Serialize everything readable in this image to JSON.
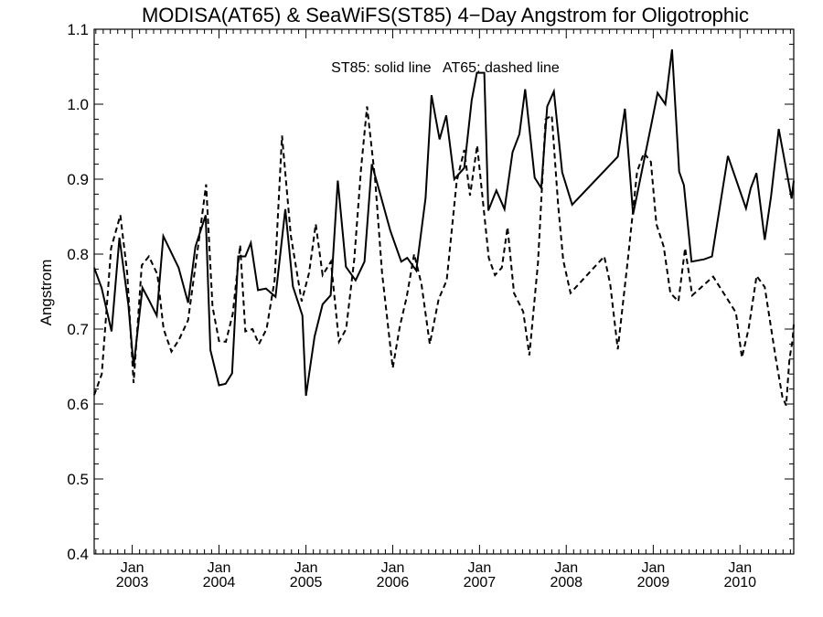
{
  "chart_data": {
    "type": "line",
    "title": "MODISA(AT65) & SeaWiFS(ST85) 4−Day Angstrom for Oligotrophic",
    "ylabel": "Angstrom",
    "xlabel": "",
    "ylim": [
      0.4,
      1.1
    ],
    "xlim": [
      "2002-07-25",
      "2010-08-15"
    ],
    "yticks": [
      "0.4",
      "0.5",
      "0.6",
      "0.7",
      "0.8",
      "0.9",
      "1.0",
      "1.1"
    ],
    "xticks": [
      {
        "date": "2003-01-01",
        "month": "Jan",
        "year": "2003"
      },
      {
        "date": "2004-01-01",
        "month": "Jan",
        "year": "2004"
      },
      {
        "date": "2005-01-01",
        "month": "Jan",
        "year": "2005"
      },
      {
        "date": "2006-01-01",
        "month": "Jan",
        "year": "2006"
      },
      {
        "date": "2007-01-01",
        "month": "Jan",
        "year": "2007"
      },
      {
        "date": "2008-01-01",
        "month": "Jan",
        "year": "2008"
      },
      {
        "date": "2009-01-01",
        "month": "Jan",
        "year": "2009"
      },
      {
        "date": "2010-01-01",
        "month": "Jan",
        "year": "2010"
      }
    ],
    "annotation": "ST85: solid line   AT65: dashed line",
    "grid": false,
    "series": [
      {
        "name": "ST85",
        "style": "solid",
        "color": "#000000",
        "points": [
          [
            "2002-07-25",
            0.782
          ],
          [
            "2002-08-25",
            0.755
          ],
          [
            "2002-10-06",
            0.697
          ],
          [
            "2002-11-08",
            0.822
          ],
          [
            "2002-12-16",
            0.732
          ],
          [
            "2003-01-07",
            0.65
          ],
          [
            "2003-02-13",
            0.755
          ],
          [
            "2003-03-15",
            0.737
          ],
          [
            "2003-04-14",
            0.718
          ],
          [
            "2003-05-12",
            0.824
          ],
          [
            "2003-07-15",
            0.782
          ],
          [
            "2003-08-24",
            0.735
          ],
          [
            "2003-09-24",
            0.81
          ],
          [
            "2003-11-06",
            0.852
          ],
          [
            "2003-11-26",
            0.672
          ],
          [
            "2004-01-01",
            0.625
          ],
          [
            "2004-01-29",
            0.627
          ],
          [
            "2004-02-25",
            0.641
          ],
          [
            "2004-03-22",
            0.797
          ],
          [
            "2004-04-21",
            0.797
          ],
          [
            "2004-05-14",
            0.815
          ],
          [
            "2004-06-13",
            0.752
          ],
          [
            "2004-07-17",
            0.754
          ],
          [
            "2004-08-26",
            0.743
          ],
          [
            "2004-10-06",
            0.86
          ],
          [
            "2004-11-07",
            0.757
          ],
          [
            "2004-12-17",
            0.718
          ],
          [
            "2005-01-01",
            0.611
          ],
          [
            "2005-02-06",
            0.69
          ],
          [
            "2005-03-12",
            0.733
          ],
          [
            "2005-04-15",
            0.745
          ],
          [
            "2005-05-15",
            0.898
          ],
          [
            "2005-06-18",
            0.783
          ],
          [
            "2005-07-29",
            0.765
          ],
          [
            "2005-09-04",
            0.79
          ],
          [
            "2005-10-05",
            0.92
          ],
          [
            "2005-11-08",
            0.882
          ],
          [
            "2005-12-22",
            0.831
          ],
          [
            "2006-02-06",
            0.79
          ],
          [
            "2006-03-03",
            0.795
          ],
          [
            "2006-04-10",
            0.778
          ],
          [
            "2006-05-19",
            0.875
          ],
          [
            "2006-06-13",
            1.012
          ],
          [
            "2006-07-17",
            0.953
          ],
          [
            "2006-08-14",
            0.985
          ],
          [
            "2006-09-17",
            0.9
          ],
          [
            "2006-10-29",
            0.915
          ],
          [
            "2006-11-29",
            1.005
          ],
          [
            "2006-12-21",
            1.042
          ],
          [
            "2007-01-21",
            1.042
          ],
          [
            "2007-02-07",
            0.858
          ],
          [
            "2007-03-13",
            0.885
          ],
          [
            "2007-04-16",
            0.86
          ],
          [
            "2007-05-20",
            0.936
          ],
          [
            "2007-06-18",
            0.96
          ],
          [
            "2007-07-12",
            1.02
          ],
          [
            "2007-08-21",
            0.902
          ],
          [
            "2007-09-18",
            0.888
          ],
          [
            "2007-10-13",
            0.997
          ],
          [
            "2007-11-10",
            1.017
          ],
          [
            "2007-12-15",
            0.909
          ],
          [
            "2008-01-26",
            0.866
          ],
          [
            "2008-08-05",
            0.93
          ],
          [
            "2008-09-04",
            0.994
          ],
          [
            "2008-10-08",
            0.853
          ],
          [
            "2008-12-25",
            0.975
          ],
          [
            "2009-01-19",
            1.015
          ],
          [
            "2009-02-21",
            1.0
          ],
          [
            "2009-03-21",
            1.073
          ],
          [
            "2009-04-20",
            0.91
          ],
          [
            "2009-05-10",
            0.892
          ],
          [
            "2009-06-11",
            0.79
          ],
          [
            "2009-08-03",
            0.793
          ],
          [
            "2009-09-05",
            0.797
          ],
          [
            "2009-11-11",
            0.931
          ],
          [
            "2010-01-26",
            0.861
          ],
          [
            "2010-02-15",
            0.888
          ],
          [
            "2010-03-11",
            0.908
          ],
          [
            "2010-04-15",
            0.819
          ],
          [
            "2010-05-12",
            0.878
          ],
          [
            "2010-06-13",
            0.967
          ],
          [
            "2010-08-06",
            0.874
          ],
          [
            "2010-08-15",
            0.898
          ]
        ]
      },
      {
        "name": "AT65",
        "style": "dashed",
        "color": "#000000",
        "points": [
          [
            "2002-07-25",
            0.612
          ],
          [
            "2002-08-26",
            0.64
          ],
          [
            "2002-10-04",
            0.808
          ],
          [
            "2002-11-12",
            0.852
          ],
          [
            "2002-12-11",
            0.775
          ],
          [
            "2003-01-07",
            0.628
          ],
          [
            "2003-02-10",
            0.785
          ],
          [
            "2003-03-12",
            0.797
          ],
          [
            "2003-04-17",
            0.773
          ],
          [
            "2003-05-13",
            0.7
          ],
          [
            "2003-06-15",
            0.67
          ],
          [
            "2003-07-17",
            0.686
          ],
          [
            "2003-08-24",
            0.712
          ],
          [
            "2003-10-05",
            0.81
          ],
          [
            "2003-11-08",
            0.893
          ],
          [
            "2003-12-05",
            0.73
          ],
          [
            "2004-01-01",
            0.684
          ],
          [
            "2004-01-30",
            0.683
          ],
          [
            "2004-02-28",
            0.72
          ],
          [
            "2004-03-30",
            0.812
          ],
          [
            "2004-04-21",
            0.697
          ],
          [
            "2004-05-21",
            0.7
          ],
          [
            "2004-06-17",
            0.68
          ],
          [
            "2004-07-19",
            0.7
          ],
          [
            "2004-08-22",
            0.765
          ],
          [
            "2004-09-22",
            0.958
          ],
          [
            "2004-10-29",
            0.825
          ],
          [
            "2004-12-14",
            0.737
          ],
          [
            "2005-01-14",
            0.775
          ],
          [
            "2005-02-11",
            0.84
          ],
          [
            "2005-03-12",
            0.772
          ],
          [
            "2005-04-16",
            0.79
          ],
          [
            "2005-05-20",
            0.683
          ],
          [
            "2005-06-19",
            0.7
          ],
          [
            "2005-07-23",
            0.793
          ],
          [
            "2005-08-21",
            0.915
          ],
          [
            "2005-09-15",
            0.997
          ],
          [
            "2005-10-19",
            0.9
          ],
          [
            "2005-11-17",
            0.775
          ],
          [
            "2006-01-01",
            0.648
          ],
          [
            "2006-01-31",
            0.704
          ],
          [
            "2006-02-28",
            0.742
          ],
          [
            "2006-04-01",
            0.8
          ],
          [
            "2006-05-02",
            0.76
          ],
          [
            "2006-06-06",
            0.68
          ],
          [
            "2006-07-13",
            0.74
          ],
          [
            "2006-08-16",
            0.765
          ],
          [
            "2006-09-27",
            0.897
          ],
          [
            "2006-10-29",
            0.939
          ],
          [
            "2006-11-22",
            0.878
          ],
          [
            "2006-12-22",
            0.945
          ],
          [
            "2007-02-09",
            0.795
          ],
          [
            "2007-03-07",
            0.772
          ],
          [
            "2007-04-05",
            0.782
          ],
          [
            "2007-04-29",
            0.836
          ],
          [
            "2007-05-26",
            0.748
          ],
          [
            "2007-07-04",
            0.723
          ],
          [
            "2007-07-30",
            0.665
          ],
          [
            "2007-09-04",
            0.788
          ],
          [
            "2007-10-06",
            0.98
          ],
          [
            "2007-11-01",
            0.985
          ],
          [
            "2007-11-28",
            0.865
          ],
          [
            "2007-12-19",
            0.792
          ],
          [
            "2008-01-19",
            0.748
          ],
          [
            "2008-06-09",
            0.797
          ],
          [
            "2008-07-04",
            0.76
          ],
          [
            "2008-08-05",
            0.673
          ],
          [
            "2008-09-17",
            0.795
          ],
          [
            "2008-10-25",
            0.91
          ],
          [
            "2008-11-23",
            0.935
          ],
          [
            "2008-12-22",
            0.923
          ],
          [
            "2009-01-14",
            0.84
          ],
          [
            "2009-02-14",
            0.81
          ],
          [
            "2009-03-14",
            0.748
          ],
          [
            "2009-04-17",
            0.737
          ],
          [
            "2009-05-15",
            0.808
          ],
          [
            "2009-06-14",
            0.745
          ],
          [
            "2009-09-10",
            0.77
          ],
          [
            "2009-12-15",
            0.722
          ],
          [
            "2010-01-09",
            0.662
          ],
          [
            "2010-02-06",
            0.7
          ],
          [
            "2010-03-12",
            0.771
          ],
          [
            "2010-04-15",
            0.756
          ],
          [
            "2010-06-01",
            0.66
          ],
          [
            "2010-06-28",
            0.61
          ],
          [
            "2010-07-14",
            0.598
          ],
          [
            "2010-07-28",
            0.66
          ],
          [
            "2010-08-10",
            0.685
          ],
          [
            "2010-08-15",
            0.706
          ]
        ]
      }
    ]
  }
}
